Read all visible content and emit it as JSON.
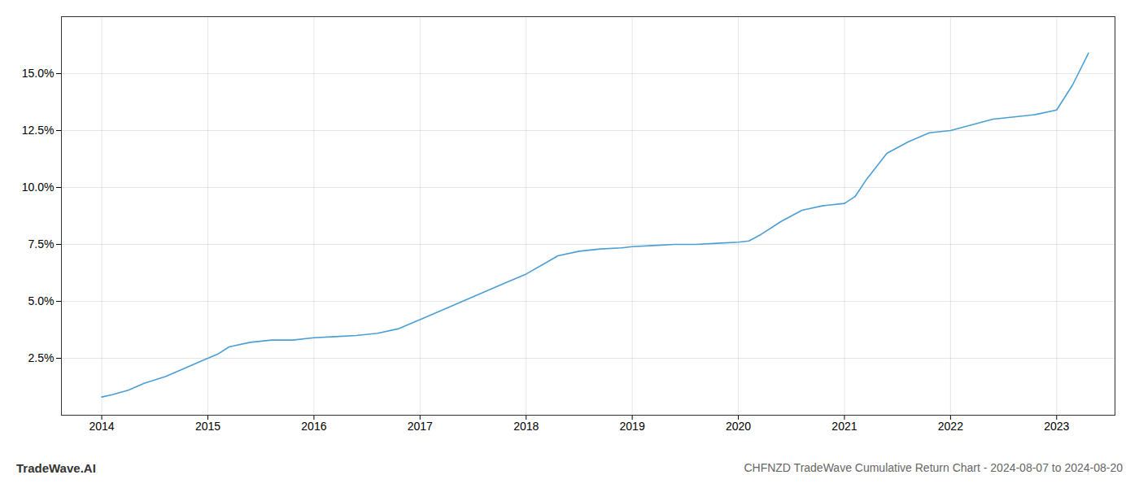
{
  "chart_data": {
    "type": "line",
    "title": "CHFNZD TradeWave Cumulative Return Chart - 2024-08-07 to 2024-08-20",
    "annotations": [
      "TradeWave.AI"
    ],
    "color": "#4a9fd4",
    "x": [
      2014.0,
      2014.1,
      2014.25,
      2014.4,
      2014.6,
      2014.8,
      2014.95,
      2015.0,
      2015.1,
      2015.2,
      2015.4,
      2015.6,
      2015.8,
      2016.0,
      2016.2,
      2016.4,
      2016.6,
      2016.8,
      2017.0,
      2017.2,
      2017.4,
      2017.6,
      2017.8,
      2018.0,
      2018.15,
      2018.3,
      2018.5,
      2018.7,
      2018.9,
      2019.0,
      2019.2,
      2019.4,
      2019.6,
      2019.8,
      2020.0,
      2020.1,
      2020.2,
      2020.4,
      2020.6,
      2020.8,
      2021.0,
      2021.1,
      2021.2,
      2021.4,
      2021.6,
      2021.8,
      2022.0,
      2022.2,
      2022.4,
      2022.6,
      2022.8,
      2023.0,
      2023.15,
      2023.3
    ],
    "values": [
      0.8,
      0.9,
      1.1,
      1.4,
      1.7,
      2.1,
      2.4,
      2.5,
      2.7,
      3.0,
      3.2,
      3.3,
      3.3,
      3.4,
      3.45,
      3.5,
      3.6,
      3.8,
      4.2,
      4.6,
      5.0,
      5.4,
      5.8,
      6.2,
      6.6,
      7.0,
      7.2,
      7.3,
      7.35,
      7.4,
      7.45,
      7.5,
      7.5,
      7.55,
      7.6,
      7.65,
      7.9,
      8.5,
      9.0,
      9.2,
      9.3,
      9.6,
      10.3,
      11.5,
      12.0,
      12.4,
      12.5,
      12.75,
      13.0,
      13.1,
      13.2,
      13.4,
      14.5,
      15.9
    ],
    "xlim": [
      2013.62,
      2023.55
    ],
    "ylim": [
      0,
      17.5
    ],
    "xticks": [
      2014,
      2015,
      2016,
      2017,
      2018,
      2019,
      2020,
      2021,
      2022,
      2023
    ],
    "yticks": [
      {
        "value": 2.5,
        "label": "2.5%"
      },
      {
        "value": 5.0,
        "label": "5.0%"
      },
      {
        "value": 7.5,
        "label": "7.5%"
      },
      {
        "value": 10.0,
        "label": "10.0%"
      },
      {
        "value": 12.5,
        "label": "12.5%"
      },
      {
        "value": 15.0,
        "label": "15.0%"
      }
    ],
    "grid": true
  }
}
